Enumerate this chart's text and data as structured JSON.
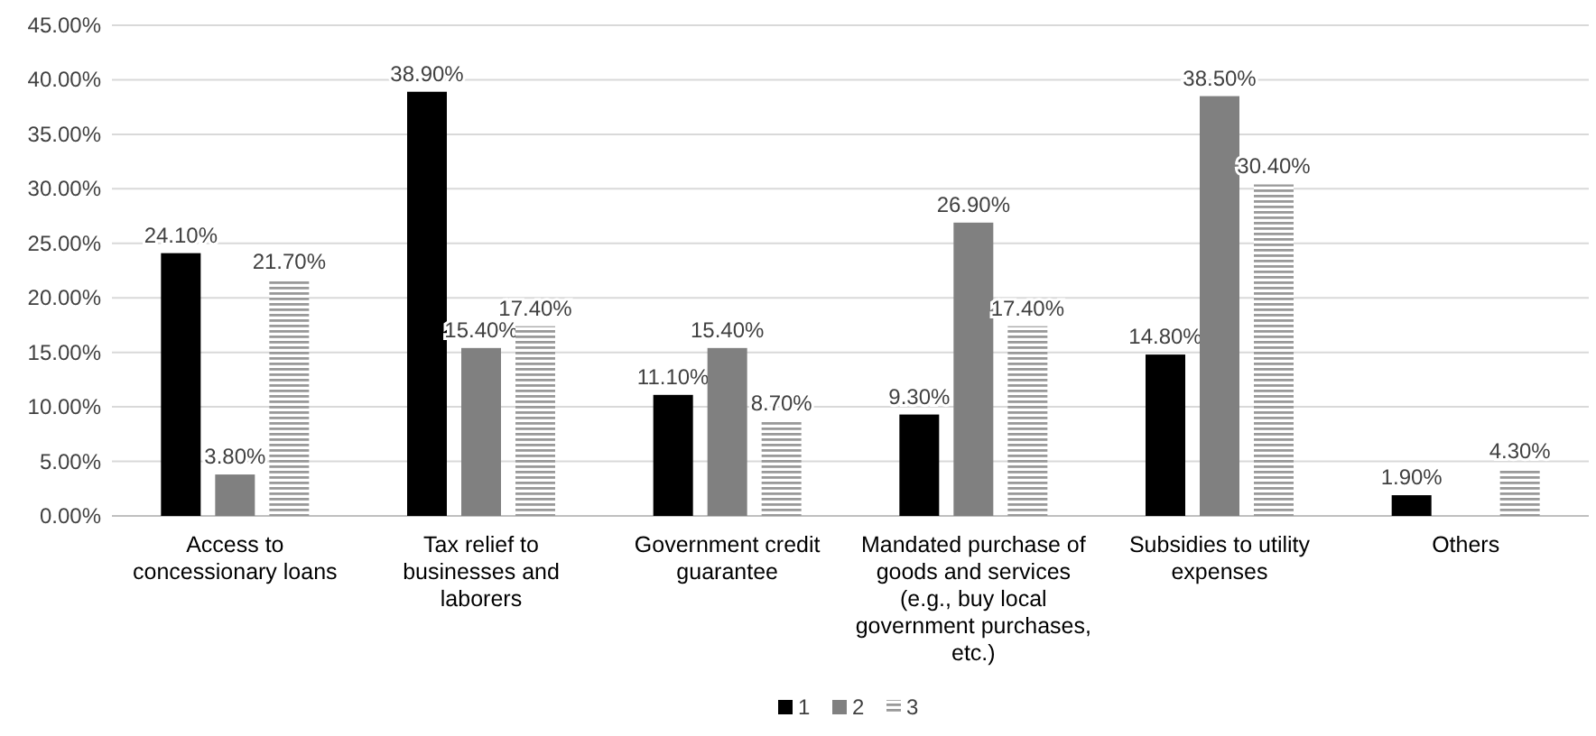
{
  "chart_data": {
    "type": "bar",
    "categories": [
      "Access to concessionary loans",
      "Tax relief to businesses and laborers",
      "Government credit guarantee",
      "Mandated purchase of goods and services (e.g., buy local government purchases, etc.)",
      "Subsidies to utility expenses",
      "Others"
    ],
    "series": [
      {
        "name": "1",
        "color": "#000000",
        "values": [
          24.1,
          38.9,
          11.1,
          9.3,
          14.8,
          1.9
        ],
        "value_labels": [
          "24.10%",
          "38.90%",
          "11.10%",
          "9.30%",
          "14.80%",
          "1.90%"
        ]
      },
      {
        "name": "2",
        "color": "#808080",
        "values": [
          3.8,
          15.4,
          15.4,
          26.9,
          38.5,
          null
        ],
        "value_labels": [
          "3.80%",
          "15.40%",
          "15.40%",
          "26.90%",
          "38.50%",
          null
        ]
      },
      {
        "name": "3",
        "color": "#999999",
        "values": [
          21.7,
          17.4,
          8.7,
          17.4,
          30.4,
          4.3
        ],
        "value_labels": [
          "21.70%",
          "17.40%",
          "8.70%",
          "17.40%",
          "30.40%",
          "4.30%"
        ]
      }
    ],
    "ylim": [
      0,
      45
    ],
    "yticks": [
      {
        "value": 0,
        "label": "0.00%"
      },
      {
        "value": 5,
        "label": "5.00%"
      },
      {
        "value": 10,
        "label": "10.00%"
      },
      {
        "value": 15,
        "label": "15.00%"
      },
      {
        "value": 20,
        "label": "20.00%"
      },
      {
        "value": 25,
        "label": "25.00%"
      },
      {
        "value": 30,
        "label": "30.00%"
      },
      {
        "value": 35,
        "label": "35.00%"
      },
      {
        "value": 40,
        "label": "40.00%"
      },
      {
        "value": 45,
        "label": "45.00%"
      }
    ],
    "grid": "y",
    "legend": "bottom"
  }
}
